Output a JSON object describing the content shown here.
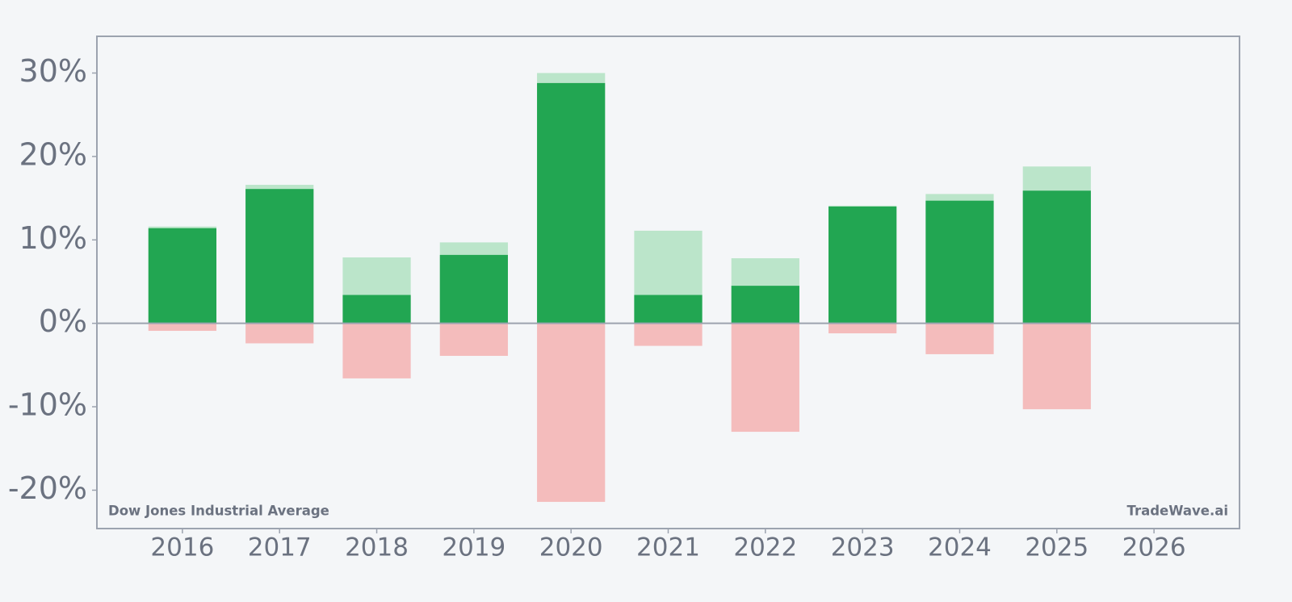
{
  "chart_data": {
    "type": "bar",
    "categories": [
      "2016",
      "2017",
      "2018",
      "2019",
      "2020",
      "2021",
      "2022",
      "2023",
      "2024",
      "2025",
      "2026"
    ],
    "series": [
      {
        "color": "#bbe5ca",
        "values": [
          11.6,
          16.6,
          7.9,
          9.7,
          30.0,
          11.1,
          7.8,
          14.1,
          15.5,
          18.8,
          null
        ]
      },
      {
        "color": "#22a652",
        "values": [
          11.4,
          16.1,
          3.4,
          8.2,
          28.8,
          3.4,
          4.5,
          14.0,
          14.7,
          15.9,
          null
        ]
      },
      {
        "color": "#f4bcbc",
        "values": [
          -0.9,
          -2.4,
          -6.6,
          -3.9,
          -21.4,
          -2.7,
          -13.0,
          -1.2,
          -3.7,
          -10.3,
          null
        ]
      }
    ],
    "ylim": [
      -24.6,
      34.4
    ],
    "yticks": [
      {
        "value": -20,
        "label": "-20%"
      },
      {
        "value": -10,
        "label": "-10%"
      },
      {
        "value": 0,
        "label": "0%"
      },
      {
        "value": 10,
        "label": "10%"
      },
      {
        "value": 20,
        "label": "20%"
      },
      {
        "value": 30,
        "label": "30%"
      }
    ],
    "annotations": [
      "Dow Jones Industrial Average",
      "TradeWave.ai"
    ]
  }
}
